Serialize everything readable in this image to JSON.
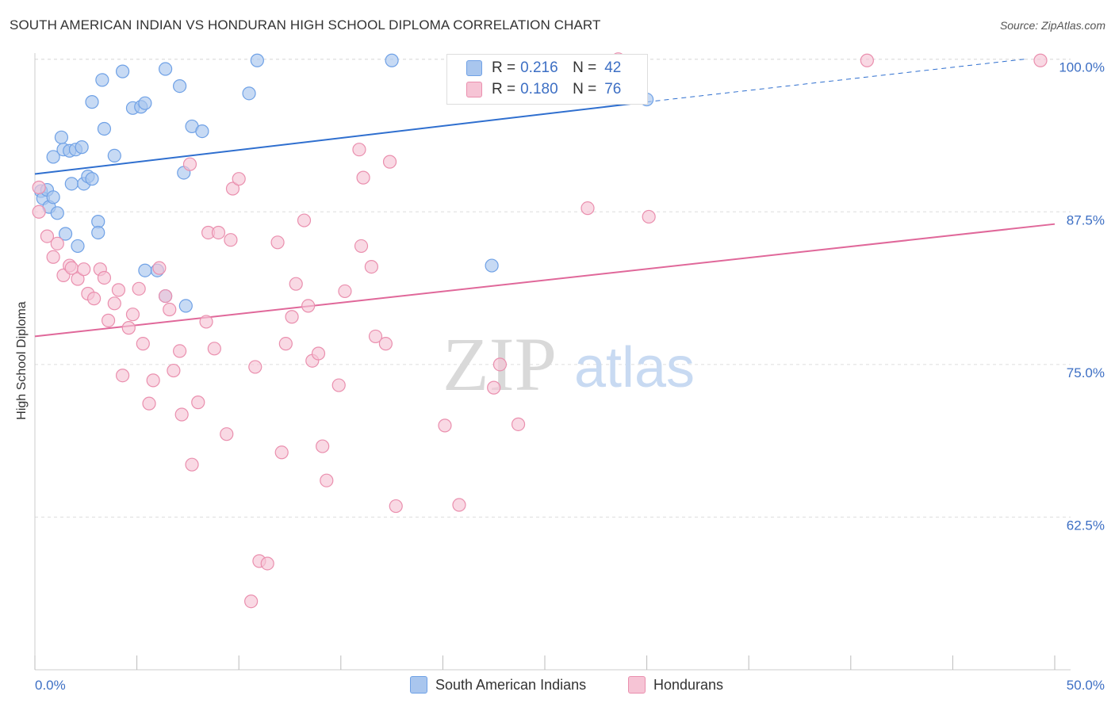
{
  "title": "SOUTH AMERICAN INDIAN VS HONDURAN HIGH SCHOOL DIPLOMA CORRELATION CHART",
  "source": "Source: ZipAtlas.com",
  "watermark": {
    "zip": "ZIP",
    "atlas": "atlas"
  },
  "colors": {
    "blue": "#6fa1e6",
    "blue_fill": "#a9c6ee",
    "blue_line": "#2f6fcf",
    "pink": "#ea8fae",
    "pink_fill": "#f6c4d5",
    "pink_line": "#e0689a",
    "tick_label": "#3d6fc4",
    "grid": "#dddddd"
  },
  "legend_top": {
    "rows": [
      {
        "r_label": "R =",
        "r_value": "0.216",
        "n_label": "N =",
        "n_value": "42"
      },
      {
        "r_label": "R =",
        "r_value": "0.180",
        "n_label": "N =",
        "n_value": "76"
      }
    ]
  },
  "legend_bottom": {
    "items": [
      {
        "label": "South American Indians"
      },
      {
        "label": "Hondurans"
      }
    ]
  },
  "chart_data": {
    "type": "scatter",
    "title": "SOUTH AMERICAN INDIAN VS HONDURAN HIGH SCHOOL DIPLOMA CORRELATION CHART",
    "xlabel": "",
    "ylabel": "High School Diploma",
    "xlim": [
      0,
      50
    ],
    "ylim": [
      50,
      100.5
    ],
    "x_ticks": [
      0,
      5,
      10,
      15,
      20,
      25,
      30,
      35,
      40,
      45,
      50
    ],
    "x_tick_labels": [
      {
        "value": 0,
        "label": "0.0%"
      },
      {
        "value": 50,
        "label": "50.0%"
      }
    ],
    "y_ticks": [
      {
        "value": 62.5,
        "label": "62.5%"
      },
      {
        "value": 75.0,
        "label": "75.0%"
      },
      {
        "value": 87.5,
        "label": "87.5%"
      },
      {
        "value": 100.0,
        "label": "100.0%"
      }
    ],
    "grid": true,
    "legend_position": "top-center",
    "series": [
      {
        "name": "South American Indians",
        "color": "#6fa1e6",
        "trend": {
          "x": [
            0,
            30
          ],
          "y": [
            90.6,
            96.5
          ],
          "dashed_to": [
            48.5,
            100.0
          ]
        },
        "points": [
          [
            0.3,
            89.2
          ],
          [
            0.4,
            88.6
          ],
          [
            0.6,
            89.3
          ],
          [
            0.7,
            87.9
          ],
          [
            0.9,
            88.7
          ],
          [
            1.1,
            87.4
          ],
          [
            0.9,
            92.0
          ],
          [
            1.3,
            93.6
          ],
          [
            1.4,
            92.6
          ],
          [
            1.7,
            92.5
          ],
          [
            2.0,
            92.6
          ],
          [
            2.3,
            92.8
          ],
          [
            1.8,
            89.8
          ],
          [
            2.4,
            89.8
          ],
          [
            2.6,
            90.4
          ],
          [
            2.8,
            90.2
          ],
          [
            1.5,
            85.7
          ],
          [
            2.1,
            84.7
          ],
          [
            3.1,
            86.7
          ],
          [
            3.1,
            85.8
          ],
          [
            2.8,
            96.5
          ],
          [
            3.3,
            98.3
          ],
          [
            3.4,
            94.3
          ],
          [
            3.9,
            92.1
          ],
          [
            4.3,
            99.0
          ],
          [
            4.8,
            96.0
          ],
          [
            5.2,
            96.1
          ],
          [
            5.4,
            96.4
          ],
          [
            6.4,
            99.2
          ],
          [
            7.1,
            97.8
          ],
          [
            7.3,
            90.7
          ],
          [
            7.7,
            94.5
          ],
          [
            8.2,
            94.1
          ],
          [
            10.5,
            97.2
          ],
          [
            10.9,
            99.9
          ],
          [
            17.5,
            99.9
          ],
          [
            6.0,
            82.7
          ],
          [
            7.4,
            79.8
          ],
          [
            6.4,
            80.6
          ],
          [
            30.0,
            96.7
          ],
          [
            22.4,
            83.1
          ],
          [
            5.4,
            82.7
          ]
        ]
      },
      {
        "name": "Hondurans",
        "color": "#ea8fae",
        "trend": {
          "x": [
            0,
            50
          ],
          "y": [
            77.3,
            86.5
          ]
        },
        "points": [
          [
            0.2,
            87.5
          ],
          [
            0.2,
            89.5
          ],
          [
            0.6,
            85.5
          ],
          [
            0.9,
            83.8
          ],
          [
            1.1,
            84.9
          ],
          [
            1.4,
            82.3
          ],
          [
            1.7,
            83.1
          ],
          [
            1.8,
            82.9
          ],
          [
            2.1,
            82.0
          ],
          [
            2.4,
            82.8
          ],
          [
            2.6,
            80.8
          ],
          [
            2.9,
            80.4
          ],
          [
            3.2,
            82.8
          ],
          [
            3.4,
            82.1
          ],
          [
            3.6,
            78.6
          ],
          [
            3.9,
            80.0
          ],
          [
            4.1,
            81.1
          ],
          [
            4.3,
            74.1
          ],
          [
            4.6,
            78.0
          ],
          [
            4.8,
            79.1
          ],
          [
            5.1,
            81.2
          ],
          [
            5.3,
            76.7
          ],
          [
            5.6,
            71.8
          ],
          [
            5.8,
            73.7
          ],
          [
            6.1,
            82.9
          ],
          [
            6.4,
            80.6
          ],
          [
            6.6,
            79.5
          ],
          [
            6.8,
            74.5
          ],
          [
            7.1,
            76.1
          ],
          [
            7.2,
            70.9
          ],
          [
            7.6,
            91.4
          ],
          [
            7.7,
            66.8
          ],
          [
            8.0,
            71.9
          ],
          [
            8.4,
            78.5
          ],
          [
            8.5,
            85.8
          ],
          [
            8.8,
            76.3
          ],
          [
            9.0,
            85.8
          ],
          [
            9.4,
            69.3
          ],
          [
            9.6,
            85.2
          ],
          [
            9.7,
            89.4
          ],
          [
            10.0,
            90.2
          ],
          [
            10.8,
            74.8
          ],
          [
            11.0,
            58.9
          ],
          [
            11.4,
            58.7
          ],
          [
            10.6,
            55.6
          ],
          [
            11.9,
            85.0
          ],
          [
            12.1,
            67.8
          ],
          [
            12.3,
            76.7
          ],
          [
            12.6,
            78.9
          ],
          [
            12.8,
            81.6
          ],
          [
            13.2,
            86.8
          ],
          [
            13.4,
            79.8
          ],
          [
            13.6,
            75.3
          ],
          [
            13.9,
            75.9
          ],
          [
            14.1,
            68.3
          ],
          [
            14.3,
            65.5
          ],
          [
            14.9,
            73.3
          ],
          [
            15.2,
            81.0
          ],
          [
            15.9,
            92.6
          ],
          [
            16.1,
            90.3
          ],
          [
            16.0,
            84.7
          ],
          [
            16.5,
            83.0
          ],
          [
            16.7,
            77.3
          ],
          [
            17.2,
            76.7
          ],
          [
            17.4,
            91.6
          ],
          [
            17.7,
            63.4
          ],
          [
            20.1,
            70.0
          ],
          [
            20.8,
            63.5
          ],
          [
            22.5,
            73.1
          ],
          [
            22.8,
            75.0
          ],
          [
            23.7,
            70.1
          ],
          [
            27.1,
            87.8
          ],
          [
            28.6,
            100.0
          ],
          [
            30.1,
            87.1
          ],
          [
            40.8,
            99.9
          ],
          [
            49.3,
            99.9
          ]
        ]
      }
    ]
  }
}
